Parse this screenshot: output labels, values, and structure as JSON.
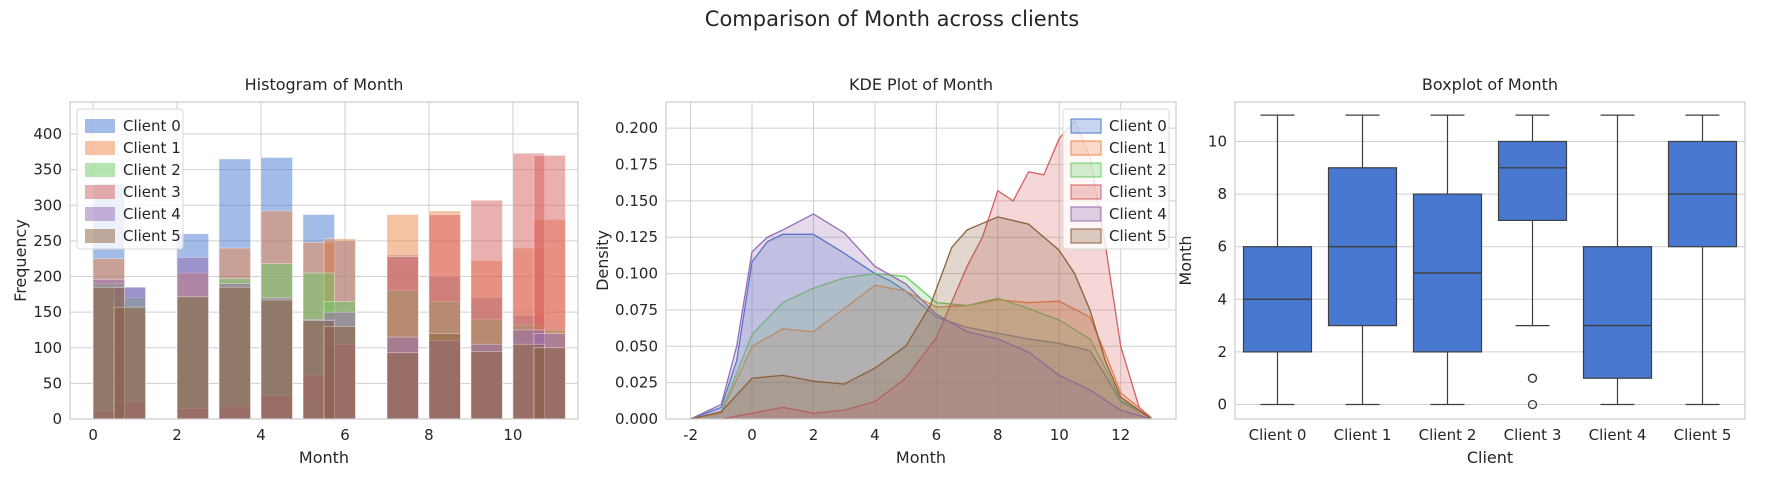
{
  "figure": {
    "suptitle": "Comparison of Month across clients"
  },
  "colors": {
    "series": [
      "#4878d0",
      "#ee854a",
      "#6acc64",
      "#d65f5f",
      "#956cb4",
      "#8c613c"
    ],
    "box": "#4878d0",
    "grid": "#cfcfcf",
    "spine": "#cccccc"
  },
  "chart_data": [
    {
      "type": "histogram",
      "title": "Histogram of Month",
      "xlabel": "Month",
      "ylabel": "Frequency",
      "xlim": [
        -0.55,
        11.55
      ],
      "ylim": [
        0,
        445
      ],
      "xticks": [
        0,
        2,
        4,
        6,
        8,
        10
      ],
      "yticks": [
        0,
        50,
        100,
        150,
        200,
        250,
        300,
        350,
        400
      ],
      "grid": true,
      "legend": "top-left",
      "bin_width": 0.75,
      "bin_starts": [
        0,
        0.5,
        2,
        3,
        4,
        5,
        5.5,
        7,
        8,
        9,
        10,
        10.5
      ],
      "series": [
        {
          "name": "Client 0",
          "values": [
            330,
            185,
            260,
            365,
            367,
            287,
            250,
            230,
            200,
            170,
            145,
            95
          ]
        },
        {
          "name": "Client 1",
          "values": [
            225,
            155,
            205,
            240,
            292,
            248,
            253,
            287,
            292,
            222,
            240,
            280
          ]
        },
        {
          "name": "Client 2",
          "values": [
            190,
            170,
            170,
            197,
            218,
            205,
            165,
            180,
            165,
            140,
            132,
            125
          ]
        },
        {
          "name": "Client 3",
          "values": [
            12,
            25,
            15,
            18,
            33,
            62,
            105,
            228,
            287,
            307,
            373,
            370
          ]
        },
        {
          "name": "Client 4",
          "values": [
            196,
            185,
            227,
            190,
            170,
            140,
            150,
            115,
            110,
            105,
            125,
            120
          ]
        },
        {
          "name": "Client 5",
          "values": [
            185,
            157,
            172,
            185,
            167,
            138,
            130,
            93,
            120,
            95,
            105,
            100
          ]
        }
      ]
    },
    {
      "type": "area",
      "title": "KDE Plot of Month",
      "xlabel": "Month",
      "ylabel": "Density",
      "xlim": [
        -2.8,
        13.8
      ],
      "ylim": [
        0,
        0.218
      ],
      "xticks": [
        -2,
        0,
        2,
        4,
        6,
        8,
        10,
        12
      ],
      "yticks": [
        0.0,
        0.025,
        0.05,
        0.075,
        0.1,
        0.125,
        0.15,
        0.175,
        0.2
      ],
      "ytick_labels": [
        "0.000",
        "0.025",
        "0.050",
        "0.075",
        "0.100",
        "0.125",
        "0.150",
        "0.175",
        "0.200"
      ],
      "grid": true,
      "legend": "top-right",
      "series": [
        {
          "name": "Client 0",
          "points": [
            [
              -2,
              0
            ],
            [
              -1,
              0.008
            ],
            [
              -0.5,
              0.04
            ],
            [
              0,
              0.108
            ],
            [
              0.5,
              0.122
            ],
            [
              1,
              0.127
            ],
            [
              2,
              0.127
            ],
            [
              3,
              0.114
            ],
            [
              4,
              0.1
            ],
            [
              4.5,
              0.095
            ],
            [
              5,
              0.088
            ],
            [
              6,
              0.07
            ],
            [
              7,
              0.063
            ],
            [
              8,
              0.059
            ],
            [
              9,
              0.055
            ],
            [
              10,
              0.052
            ],
            [
              11,
              0.047
            ],
            [
              11.5,
              0.03
            ],
            [
              12,
              0.012
            ],
            [
              13,
              0.001
            ]
          ]
        },
        {
          "name": "Client 1",
          "points": [
            [
              -2,
              0
            ],
            [
              -1,
              0.004
            ],
            [
              0,
              0.05
            ],
            [
              1,
              0.062
            ],
            [
              2,
              0.06
            ],
            [
              3,
              0.076
            ],
            [
              4,
              0.092
            ],
            [
              5,
              0.088
            ],
            [
              6,
              0.077
            ],
            [
              7,
              0.078
            ],
            [
              8,
              0.082
            ],
            [
              9,
              0.08
            ],
            [
              10,
              0.081
            ],
            [
              11,
              0.07
            ],
            [
              11.5,
              0.045
            ],
            [
              12,
              0.018
            ],
            [
              13,
              0.001
            ]
          ]
        },
        {
          "name": "Client 2",
          "points": [
            [
              -2,
              0
            ],
            [
              -1,
              0.005
            ],
            [
              0,
              0.058
            ],
            [
              1,
              0.08
            ],
            [
              2,
              0.09
            ],
            [
              3,
              0.097
            ],
            [
              4,
              0.1
            ],
            [
              5,
              0.098
            ],
            [
              6,
              0.08
            ],
            [
              7,
              0.078
            ],
            [
              8,
              0.083
            ],
            [
              9,
              0.076
            ],
            [
              10,
              0.068
            ],
            [
              11,
              0.055
            ],
            [
              11.5,
              0.035
            ],
            [
              12,
              0.013
            ],
            [
              13,
              0.001
            ]
          ]
        },
        {
          "name": "Client 3",
          "points": [
            [
              -1,
              0
            ],
            [
              0,
              0.004
            ],
            [
              1,
              0.008
            ],
            [
              2,
              0.004
            ],
            [
              3,
              0.006
            ],
            [
              4,
              0.012
            ],
            [
              5,
              0.028
            ],
            [
              6,
              0.056
            ],
            [
              7,
              0.105
            ],
            [
              7.5,
              0.125
            ],
            [
              8,
              0.157
            ],
            [
              8.5,
              0.15
            ],
            [
              9,
              0.17
            ],
            [
              9.5,
              0.168
            ],
            [
              10,
              0.193
            ],
            [
              10.5,
              0.205
            ],
            [
              11,
              0.18
            ],
            [
              11.5,
              0.12
            ],
            [
              12,
              0.05
            ],
            [
              12.6,
              0.008
            ],
            [
              13,
              0
            ]
          ]
        },
        {
          "name": "Client 4",
          "points": [
            [
              -2,
              0
            ],
            [
              -1,
              0.01
            ],
            [
              -0.5,
              0.05
            ],
            [
              0,
              0.115
            ],
            [
              0.5,
              0.125
            ],
            [
              1,
              0.13
            ],
            [
              2,
              0.141
            ],
            [
              3,
              0.128
            ],
            [
              4,
              0.105
            ],
            [
              5,
              0.093
            ],
            [
              6,
              0.072
            ],
            [
              7,
              0.06
            ],
            [
              8,
              0.055
            ],
            [
              9,
              0.046
            ],
            [
              10,
              0.03
            ],
            [
              11,
              0.02
            ],
            [
              12,
              0.006
            ],
            [
              13,
              0
            ]
          ]
        },
        {
          "name": "Client 5",
          "points": [
            [
              -2,
              0
            ],
            [
              -1,
              0.005
            ],
            [
              0,
              0.028
            ],
            [
              1,
              0.03
            ],
            [
              2,
              0.026
            ],
            [
              3,
              0.024
            ],
            [
              4,
              0.035
            ],
            [
              5,
              0.05
            ],
            [
              5.8,
              0.078
            ],
            [
              6.5,
              0.118
            ],
            [
              7,
              0.13
            ],
            [
              8,
              0.139
            ],
            [
              9,
              0.134
            ],
            [
              10,
              0.116
            ],
            [
              10.5,
              0.1
            ],
            [
              11,
              0.075
            ],
            [
              11.5,
              0.04
            ],
            [
              12,
              0.015
            ],
            [
              13,
              0
            ]
          ]
        }
      ]
    },
    {
      "type": "box",
      "title": "Boxplot of Month",
      "xlabel": "Client",
      "ylabel": "Month",
      "ylim": [
        -0.55,
        11.5
      ],
      "yticks": [
        0,
        2,
        4,
        6,
        8,
        10
      ],
      "grid": true,
      "categories": [
        "Client 0",
        "Client 1",
        "Client 2",
        "Client 3",
        "Client 4",
        "Client 5"
      ],
      "boxes": [
        {
          "whisker_low": 0,
          "q1": 2,
          "median": 4,
          "q3": 6,
          "whisker_high": 11,
          "outliers": []
        },
        {
          "whisker_low": 0,
          "q1": 3,
          "median": 6,
          "q3": 9,
          "whisker_high": 11,
          "outliers": []
        },
        {
          "whisker_low": 0,
          "q1": 2,
          "median": 5,
          "q3": 8,
          "whisker_high": 11,
          "outliers": []
        },
        {
          "whisker_low": 3,
          "q1": 7,
          "median": 9,
          "q3": 10,
          "whisker_high": 11,
          "outliers": [
            0,
            1,
            1
          ]
        },
        {
          "whisker_low": 0,
          "q1": 1,
          "median": 3,
          "q3": 6,
          "whisker_high": 11,
          "outliers": []
        },
        {
          "whisker_low": 0,
          "q1": 6,
          "median": 8,
          "q3": 10,
          "whisker_high": 11,
          "outliers": []
        }
      ]
    }
  ]
}
